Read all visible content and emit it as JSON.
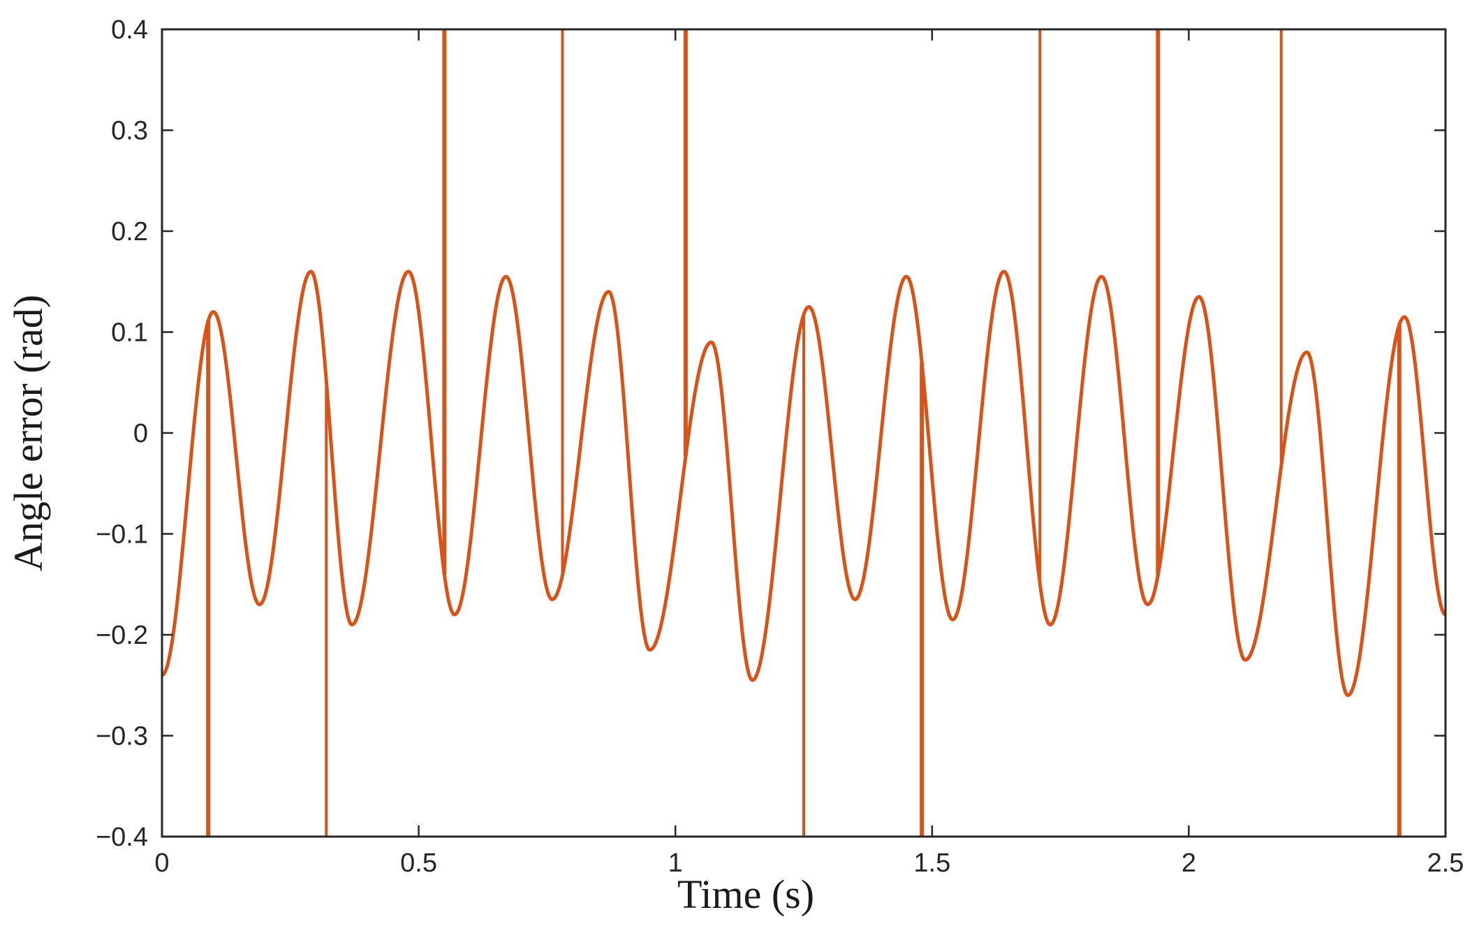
{
  "chart_data": {
    "type": "line",
    "title": "",
    "xlabel": "Time (s)",
    "ylabel": "Angle error (rad)",
    "xlim": [
      0,
      2.5
    ],
    "ylim": [
      -0.4,
      0.4
    ],
    "grid": false,
    "legend": "none",
    "x_ticks": [
      "0",
      "0.5",
      "1",
      "1.5",
      "2",
      "2.5"
    ],
    "x_tick_values": [
      0,
      0.5,
      1,
      1.5,
      2,
      2.5
    ],
    "y_ticks": [
      "0.4",
      "0.3",
      "0.2",
      "0.1",
      "0",
      "−0.1",
      "−0.2",
      "−0.3",
      "−0.4"
    ],
    "y_tick_values": [
      0.4,
      0.3,
      0.2,
      0.1,
      0,
      -0.1,
      -0.2,
      -0.3,
      -0.4
    ],
    "series": [
      {
        "color": "#D95319",
        "extrema": [
          [
            0.0,
            -0.24
          ],
          [
            0.1,
            0.12
          ],
          [
            0.19,
            -0.17
          ],
          [
            0.29,
            0.16
          ],
          [
            0.37,
            -0.19
          ],
          [
            0.48,
            0.16
          ],
          [
            0.57,
            -0.18
          ],
          [
            0.67,
            0.155
          ],
          [
            0.76,
            -0.165
          ],
          [
            0.87,
            0.14
          ],
          [
            0.95,
            -0.215
          ],
          [
            1.07,
            0.09
          ],
          [
            1.15,
            -0.245
          ],
          [
            1.26,
            0.125
          ],
          [
            1.35,
            -0.165
          ],
          [
            1.45,
            0.155
          ],
          [
            1.54,
            -0.185
          ],
          [
            1.64,
            0.16
          ],
          [
            1.73,
            -0.19
          ],
          [
            1.83,
            0.155
          ],
          [
            1.92,
            -0.17
          ],
          [
            2.02,
            0.135
          ],
          [
            2.11,
            -0.225
          ],
          [
            2.23,
            0.08
          ],
          [
            2.31,
            -0.26
          ],
          [
            2.42,
            0.115
          ],
          [
            2.5,
            -0.18
          ]
        ],
        "spikes": [
          {
            "x": 0.09,
            "y": -0.4
          },
          {
            "x": 0.32,
            "y": -0.4
          },
          {
            "x": 0.55,
            "y": 0.4
          },
          {
            "x": 0.78,
            "y": 0.4
          },
          {
            "x": 1.02,
            "y": 0.4
          },
          {
            "x": 1.25,
            "y": -0.4
          },
          {
            "x": 1.48,
            "y": -0.4
          },
          {
            "x": 1.71,
            "y": 0.4
          },
          {
            "x": 1.94,
            "y": 0.4
          },
          {
            "x": 2.18,
            "y": 0.4
          },
          {
            "x": 2.41,
            "y": -0.4
          }
        ]
      }
    ]
  }
}
